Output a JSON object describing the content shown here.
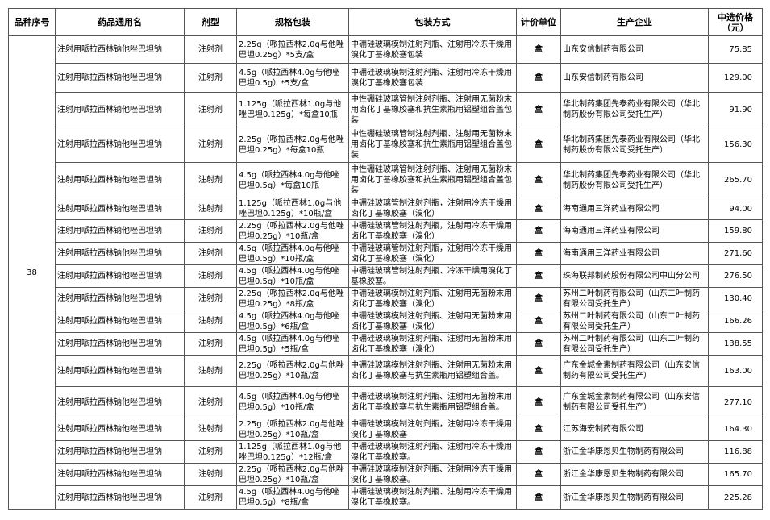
{
  "headers": [
    "品种序号",
    "药品通用名",
    "剂型",
    "规格包装",
    "包装方式",
    "计价单位",
    "生产企业",
    "中选价格\n（元）"
  ],
  "group_no": "38",
  "drug_name": "注射用哌拉西林钠他唑巴坦钠",
  "dosage_form": "注射剂",
  "unit": "盒",
  "rows": [
    {
      "spec": "2.25g（哌拉西林2.0g与他唑巴坦0.25g）*5支/盒",
      "pack": "中硼硅玻璃模制注射剂瓶、注射用冷冻干燥用溴化丁基橡胶塞包装",
      "company": "山东安信制药有限公司",
      "price": "75.85"
    },
    {
      "spec": "4.5g（哌拉西林4.0g与他唑巴坦0.5g）*5支/盒",
      "pack": "中硼硅玻璃模制注射剂瓶、注射用冷冻干燥用溴化丁基橡胶塞包装",
      "company": "山东安信制药有限公司",
      "price": "129.00"
    },
    {
      "spec": "1.125g（哌拉西林1.0g与他唑巴坦0.125g）*每盒10瓶",
      "pack": "中性硼硅玻璃管制注射剂瓶、注射用无菌粉末用卤化丁基橡胶塞和抗生素瓶用铝塑组合盖包装",
      "company": "华北制药集团先泰药业有限公司（华北制药股份有限公司受托生产）",
      "price": "91.90"
    },
    {
      "spec": "2.25g（哌拉西林2.0g与他唑巴坦0.25g）*每盒10瓶",
      "pack": "中性硼硅玻璃管制注射剂瓶、注射用无菌粉末用卤化丁基橡胶塞和抗生素瓶用铝塑组合盖包装",
      "company": "华北制药集团先泰药业有限公司（华北制药股份有限公司受托生产）",
      "price": "156.30"
    },
    {
      "spec": "4.5g（哌拉西林4.0g与他唑巴坦0.5g）*每盒10瓶",
      "pack": "中性硼硅玻璃管制注射剂瓶、注射用无菌粉末用卤化丁基橡胶塞和抗生素瓶用铝塑组合盖包装",
      "company": "华北制药集团先泰药业有限公司（华北制药股份有限公司受托生产）",
      "price": "265.70"
    },
    {
      "spec": "1.125g（哌拉西林1.0g与他唑巴坦0.125g）*10瓶/盒",
      "pack": "中硼硅玻璃管制注射剂瓶，注射用冷冻干燥用卤化丁基橡胶塞（溴化）",
      "company": "海南通用三洋药业有限公司",
      "price": "94.00"
    },
    {
      "spec": "2.25g（哌拉西林2.0g与他唑巴坦0.25g）*10瓶/盒",
      "pack": "中硼硅玻璃管制注射剂瓶，注射用冷冻干燥用卤化丁基橡胶塞（溴化）",
      "company": "海南通用三洋药业有限公司",
      "price": "159.80"
    },
    {
      "spec": "4.5g（哌拉西林4.0g与他唑巴坦0.5g）*10瓶/盒",
      "pack": "中硼硅玻璃管制注射剂瓶，注射用冷冻干燥用卤化丁基橡胶塞（溴化）",
      "company": "海南通用三洋药业有限公司",
      "price": "271.60"
    },
    {
      "spec": "4.5g（哌拉西林4.0g与他唑巴坦0.5g）*10瓶/盒",
      "pack": "中硼硅玻璃管制注射剂瓶、冷冻干燥用溴化丁基橡胶塞。",
      "company": "珠海联邦制药股份有限公司中山分公司",
      "price": "276.50"
    },
    {
      "spec": "2.25g（哌拉西林2.0g与他唑巴坦0.25g）*8瓶/盒",
      "pack": "中硼硅玻璃模制注射剂瓶、注射用无菌粉末用卤化丁基橡胶塞（溴化）",
      "company": "苏州二叶制药有限公司（山东二叶制药有限公司受托生产）",
      "price": "130.40"
    },
    {
      "spec": "4.5g（哌拉西林4.0g与他唑巴坦0.5g）*6瓶/盒",
      "pack": "中硼硅玻璃模制注射剂瓶、注射用无菌粉末用卤化丁基橡胶塞（溴化）",
      "company": "苏州二叶制药有限公司（山东二叶制药有限公司受托生产）",
      "price": "166.26"
    },
    {
      "spec": "4.5g（哌拉西林4.0g与他唑巴坦0.5g）*5瓶/盒",
      "pack": "中硼硅玻璃模制注射剂瓶、注射用无菌粉末用卤化丁基橡胶塞（溴化）",
      "company": "苏州二叶制药有限公司（山东二叶制药有限公司受托生产）",
      "price": "138.55"
    },
    {
      "spec": "2.25g（哌拉西林2.0g与他唑巴坦0.25g）*10瓶/盒",
      "pack": "中硼硅玻璃模制注射剂瓶、注射用无菌粉末用卤化丁基橡胶塞与抗生素瓶用铝塑组合盖。",
      "company": "广东金城金素制药有限公司（山东安信制药有限公司受托生产）",
      "price": "163.00"
    },
    {
      "spec": "4.5g（哌拉西林4.0g与他唑巴坦0.5g）*10瓶/盒",
      "pack": "中硼硅玻璃模制注射剂瓶、注射用无菌粉末用卤化丁基橡胶塞与抗生素瓶用铝塑组合盖。",
      "company": "广东金城金素制药有限公司（山东安信制药有限公司受托生产）",
      "price": "277.10"
    },
    {
      "spec": "2.25g（哌拉西林2.0g与他唑巴坦0.25g）*10瓶/盒",
      "pack": "中硼硅玻璃模制注射剂瓶，注射用冷冻干燥用溴化丁基橡胶塞",
      "company": "江苏海宏制药有限公司",
      "price": "164.30"
    },
    {
      "spec": "1.125g（哌拉西林1.0g与他唑巴坦0.125g）*12瓶/盒",
      "pack": "中硼硅玻璃模制注射剂瓶、注射用冷冻干燥用溴化丁基橡胶塞。",
      "company": "浙江金华康恩贝生物制药有限公司",
      "price": "116.88"
    },
    {
      "spec": "2.25g（哌拉西林2.0g与他唑巴坦0.25g）*10瓶/盒",
      "pack": "中硼硅玻璃模制注射剂瓶、注射用冷冻干燥用溴化丁基橡胶塞。",
      "company": "浙江金华康恩贝生物制药有限公司",
      "price": "165.70"
    },
    {
      "spec": "4.5g（哌拉西林4.0g与他唑巴坦0.5g）*8瓶/盒",
      "pack": "中硼硅玻璃模制注射剂瓶、注射用冷冻干燥用溴化丁基橡胶塞。",
      "company": "浙江金华康恩贝生物制药有限公司",
      "price": "225.28"
    }
  ]
}
